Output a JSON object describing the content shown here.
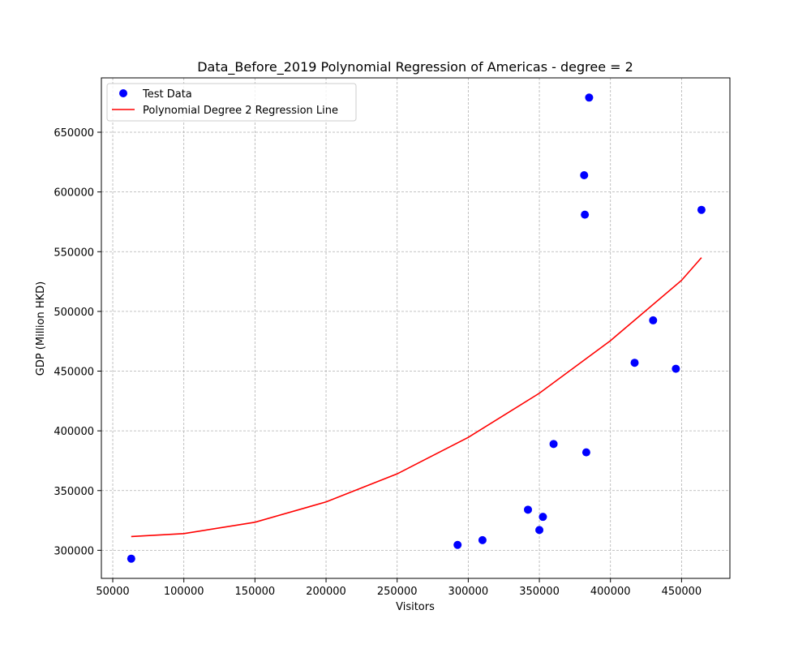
{
  "chart_data": {
    "type": "scatter",
    "title": "Data_Before_2019 Polynomial Regression of Americas - degree = 2",
    "xlabel": "Visitors",
    "ylabel": "GDP (Million HKD)",
    "xlim": [
      42000,
      484000
    ],
    "ylim": [
      276500,
      695500
    ],
    "x_ticks": [
      50000,
      100000,
      150000,
      200000,
      250000,
      300000,
      350000,
      400000,
      450000
    ],
    "y_ticks": [
      300000,
      350000,
      400000,
      450000,
      500000,
      550000,
      600000,
      650000
    ],
    "grid": true,
    "legend_position": "top-left",
    "series": [
      {
        "name": "Test Data",
        "kind": "scatter",
        "color": "#0000ff",
        "points": [
          {
            "x": 63000,
            "y": 293000
          },
          {
            "x": 292500,
            "y": 304500
          },
          {
            "x": 310000,
            "y": 308500
          },
          {
            "x": 342000,
            "y": 334000
          },
          {
            "x": 350000,
            "y": 317000
          },
          {
            "x": 352500,
            "y": 328000
          },
          {
            "x": 360000,
            "y": 389000
          },
          {
            "x": 381500,
            "y": 614000
          },
          {
            "x": 382000,
            "y": 581000
          },
          {
            "x": 383000,
            "y": 382000
          },
          {
            "x": 385000,
            "y": 679000
          },
          {
            "x": 417000,
            "y": 457000
          },
          {
            "x": 430000,
            "y": 492500
          },
          {
            "x": 446000,
            "y": 452000
          },
          {
            "x": 464000,
            "y": 585000
          }
        ]
      },
      {
        "name": "Polynomial Degree 2 Regression Line",
        "kind": "line",
        "color": "#ff0000",
        "points": [
          {
            "x": 63000,
            "y": 311500
          },
          {
            "x": 100000,
            "y": 314000
          },
          {
            "x": 150000,
            "y": 323500
          },
          {
            "x": 200000,
            "y": 340500
          },
          {
            "x": 250000,
            "y": 364000
          },
          {
            "x": 300000,
            "y": 394500
          },
          {
            "x": 350000,
            "y": 431500
          },
          {
            "x": 400000,
            "y": 475500
          },
          {
            "x": 450000,
            "y": 526000
          },
          {
            "x": 464000,
            "y": 545000
          }
        ]
      }
    ]
  }
}
